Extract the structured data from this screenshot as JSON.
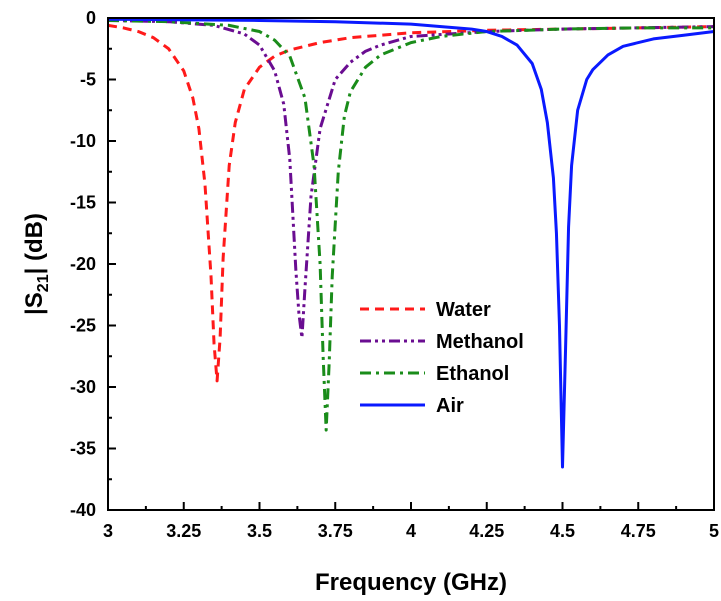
{
  "chart_data": {
    "type": "line",
    "title": "",
    "xlabel": "Frequency (GHz)",
    "ylabel_prefix": "|S",
    "ylabel_subscript": "21",
    "ylabel_suffix": "| (dB)",
    "xlim": [
      3,
      5
    ],
    "ylim": [
      -40,
      0
    ],
    "xticks": [
      "3",
      "3.25",
      "3.5",
      "3.75",
      "4",
      "4.25",
      "4.5",
      "4.75",
      "5"
    ],
    "yticks": [
      "0",
      "-5",
      "-10",
      "-15",
      "-20",
      "-25",
      "-30",
      "-35",
      "-40"
    ],
    "grid": false,
    "legend_position": "center",
    "series": [
      {
        "name": "Water",
        "color": "#ff1a1a",
        "dash": "dashed",
        "x": [
          3.0,
          3.05,
          3.1,
          3.15,
          3.2,
          3.25,
          3.28,
          3.3,
          3.32,
          3.34,
          3.35,
          3.36,
          3.37,
          3.38,
          3.4,
          3.42,
          3.45,
          3.5,
          3.55,
          3.6,
          3.7,
          3.8,
          3.9,
          4.0,
          4.25,
          4.5,
          4.75,
          5.0
        ],
        "y": [
          -0.6,
          -0.8,
          -1.1,
          -1.6,
          -2.5,
          -4.3,
          -6.5,
          -9.0,
          -13.5,
          -21.0,
          -26.5,
          -29.5,
          -26.0,
          -19.5,
          -12.0,
          -8.5,
          -5.8,
          -4.0,
          -3.1,
          -2.6,
          -2.0,
          -1.6,
          -1.4,
          -1.2,
          -1.0,
          -0.9,
          -0.8,
          -0.7
        ]
      },
      {
        "name": "Methanol",
        "color": "#6a0d91",
        "dash": "dash-dot-dot",
        "x": [
          3.0,
          3.2,
          3.35,
          3.45,
          3.5,
          3.55,
          3.58,
          3.6,
          3.62,
          3.63,
          3.64,
          3.65,
          3.67,
          3.7,
          3.75,
          3.8,
          3.85,
          3.9,
          4.0,
          4.25,
          4.5,
          4.75,
          5.0
        ],
        "y": [
          -0.2,
          -0.3,
          -0.6,
          -1.3,
          -2.2,
          -4.3,
          -7.0,
          -11.5,
          -20.5,
          -24.0,
          -26.0,
          -22.0,
          -14.5,
          -9.0,
          -5.0,
          -3.6,
          -2.7,
          -2.2,
          -1.5,
          -1.1,
          -0.9,
          -0.8,
          -0.7
        ]
      },
      {
        "name": "Ethanol",
        "color": "#1a8c1a",
        "dash": "dash-dot",
        "x": [
          3.0,
          3.2,
          3.4,
          3.5,
          3.55,
          3.6,
          3.65,
          3.68,
          3.7,
          3.71,
          3.72,
          3.73,
          3.74,
          3.76,
          3.78,
          3.8,
          3.85,
          3.9,
          4.0,
          4.1,
          4.25,
          4.5,
          4.75,
          5.0
        ],
        "y": [
          -0.2,
          -0.3,
          -0.6,
          -1.1,
          -1.8,
          -3.1,
          -6.5,
          -12.0,
          -20.0,
          -27.5,
          -33.5,
          -28.0,
          -21.0,
          -12.5,
          -8.0,
          -6.0,
          -4.0,
          -3.0,
          -2.0,
          -1.5,
          -1.1,
          -0.9,
          -0.8,
          -0.8
        ]
      },
      {
        "name": "Air",
        "color": "#0a1aff",
        "dash": "solid",
        "x": [
          3.0,
          3.5,
          3.75,
          4.0,
          4.1,
          4.2,
          4.25,
          4.3,
          4.35,
          4.4,
          4.43,
          4.45,
          4.47,
          4.48,
          4.49,
          4.5,
          4.51,
          4.52,
          4.53,
          4.55,
          4.58,
          4.6,
          4.65,
          4.7,
          4.8,
          4.9,
          5.0
        ],
        "y": [
          -0.1,
          -0.2,
          -0.3,
          -0.5,
          -0.7,
          -0.9,
          -1.1,
          -1.5,
          -2.2,
          -3.7,
          -5.8,
          -8.5,
          -13.0,
          -17.5,
          -25.0,
          -36.5,
          -27.0,
          -17.0,
          -12.0,
          -7.5,
          -5.0,
          -4.2,
          -3.0,
          -2.3,
          -1.7,
          -1.4,
          -1.1
        ]
      }
    ]
  }
}
